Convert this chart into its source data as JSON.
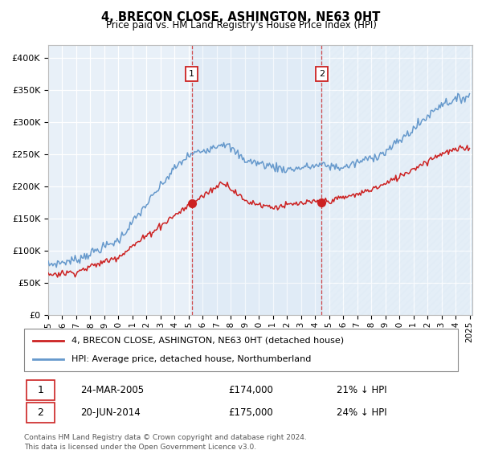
{
  "title": "4, BRECON CLOSE, ASHINGTON, NE63 0HT",
  "subtitle": "Price paid vs. HM Land Registry's House Price Index (HPI)",
  "background_color": "#e8f0f8",
  "grid_color": "#ffffff",
  "hpi_color": "#6699cc",
  "price_color": "#cc2222",
  "sale1_x": 2005.22,
  "sale1_y": 174000,
  "sale2_x": 2014.47,
  "sale2_y": 175000,
  "sale1_label": "24-MAR-2005",
  "sale1_price": "£174,000",
  "sale1_pct": "21% ↓ HPI",
  "sale2_label": "20-JUN-2014",
  "sale2_price": "£175,000",
  "sale2_pct": "24% ↓ HPI",
  "legend_line1": "4, BRECON CLOSE, ASHINGTON, NE63 0HT (detached house)",
  "legend_line2": "HPI: Average price, detached house, Northumberland",
  "footer": "Contains HM Land Registry data © Crown copyright and database right 2024.\nThis data is licensed under the Open Government Licence v3.0.",
  "ylim": [
    0,
    420000
  ],
  "yticks": [
    0,
    50000,
    100000,
    150000,
    200000,
    250000,
    300000,
    350000,
    400000
  ],
  "ytick_labels": [
    "£0",
    "£50K",
    "£100K",
    "£150K",
    "£200K",
    "£250K",
    "£300K",
    "£350K",
    "£400K"
  ],
  "xlim_start": 1995.0,
  "xlim_end": 2025.2,
  "xticks": [
    1995,
    1996,
    1997,
    1998,
    1999,
    2000,
    2001,
    2002,
    2003,
    2004,
    2005,
    2006,
    2007,
    2008,
    2009,
    2010,
    2011,
    2012,
    2013,
    2014,
    2015,
    2016,
    2017,
    2018,
    2019,
    2020,
    2021,
    2022,
    2023,
    2024,
    2025
  ]
}
